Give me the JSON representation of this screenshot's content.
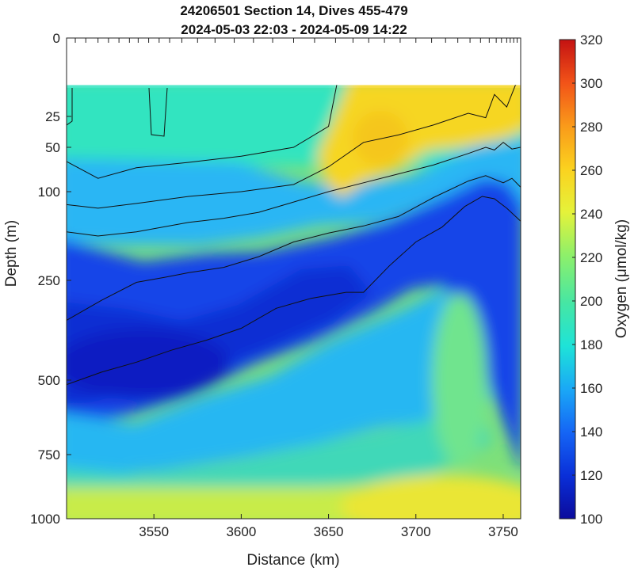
{
  "chart_data": {
    "type": "heatmap",
    "title_line1": "24206501 Section 14, Dives 455-479",
    "title_line2": "2024-05-03 22:03 - 2024-05-09 14:22",
    "xlabel": "Distance (km)",
    "ylabel": "Depth (m)",
    "colorbar_label": "Oxygen (μmol/kg)",
    "xlim": [
      3500,
      3760
    ],
    "ylim": [
      0,
      1000
    ],
    "x_ticks": [
      3550,
      3600,
      3650,
      3700,
      3750
    ],
    "y_ticks": [
      0,
      25,
      50,
      100,
      250,
      500,
      750,
      1000
    ],
    "colorbar_range": [
      100,
      320
    ],
    "colorbar_ticks": [
      100,
      120,
      140,
      160,
      180,
      200,
      220,
      240,
      260,
      280,
      300,
      320
    ],
    "data_top_depth": 15,
    "dive_positions_km": [
      3500,
      3505,
      3511,
      3518,
      3524,
      3530,
      3536,
      3541,
      3547,
      3553,
      3559,
      3566,
      3575,
      3585,
      3596,
      3607,
      3618,
      3630,
      3642,
      3654,
      3664,
      3673,
      3682,
      3691,
      3700,
      3709,
      3717,
      3724,
      3731,
      3737,
      3742,
      3746,
      3749,
      3752,
      3754,
      3756,
      3758
    ],
    "contours": [
      {
        "level": "upper",
        "points": [
          [
            3500,
            66
          ],
          [
            3518,
            85
          ],
          [
            3540,
            73
          ],
          [
            3570,
            67
          ],
          [
            3600,
            60
          ],
          [
            3630,
            50
          ],
          [
            3650,
            33
          ],
          [
            3660,
            0
          ]
        ]
      },
      {
        "level": "second",
        "points": [
          [
            3500,
            122
          ],
          [
            3518,
            128
          ],
          [
            3540,
            120
          ],
          [
            3570,
            108
          ],
          [
            3600,
            100
          ],
          [
            3630,
            92
          ],
          [
            3650,
            72
          ],
          [
            3670,
            46
          ],
          [
            3690,
            40
          ],
          [
            3710,
            32
          ],
          [
            3730,
            24
          ],
          [
            3740,
            26
          ],
          [
            3745,
            18
          ],
          [
            3752,
            22
          ],
          [
            3757,
            15
          ],
          [
            3760,
            14
          ]
        ]
      },
      {
        "level": "third",
        "points": [
          [
            3500,
            168
          ],
          [
            3518,
            175
          ],
          [
            3540,
            168
          ],
          [
            3570,
            152
          ],
          [
            3590,
            145
          ],
          [
            3610,
            135
          ],
          [
            3625,
            122
          ],
          [
            3650,
            100
          ],
          [
            3670,
            90
          ],
          [
            3690,
            80
          ],
          [
            3710,
            70
          ],
          [
            3730,
            57
          ],
          [
            3740,
            50
          ],
          [
            3745,
            53
          ],
          [
            3750,
            46
          ],
          [
            3755,
            52
          ],
          [
            3760,
            50
          ]
        ]
      },
      {
        "level": "fourth",
        "points": [
          [
            3500,
            350
          ],
          [
            3520,
            300
          ],
          [
            3540,
            255
          ],
          [
            3556,
            245
          ],
          [
            3570,
            237
          ],
          [
            3590,
            228
          ],
          [
            3610,
            210
          ],
          [
            3630,
            185
          ],
          [
            3650,
            170
          ],
          [
            3670,
            158
          ],
          [
            3690,
            142
          ],
          [
            3710,
            110
          ],
          [
            3730,
            88
          ],
          [
            3740,
            82
          ],
          [
            3750,
            90
          ],
          [
            3755,
            85
          ],
          [
            3760,
            95
          ]
        ]
      },
      {
        "level": "fifth",
        "points": [
          [
            3500,
            515
          ],
          [
            3520,
            480
          ],
          [
            3540,
            455
          ],
          [
            3560,
            425
          ],
          [
            3580,
            400
          ],
          [
            3600,
            370
          ],
          [
            3620,
            320
          ],
          [
            3640,
            295
          ],
          [
            3660,
            280
          ],
          [
            3670,
            280
          ],
          [
            3685,
            225
          ],
          [
            3700,
            185
          ],
          [
            3715,
            160
          ],
          [
            3728,
            125
          ],
          [
            3738,
            108
          ],
          [
            3745,
            112
          ],
          [
            3752,
            128
          ],
          [
            3760,
            150
          ]
        ]
      }
    ]
  }
}
